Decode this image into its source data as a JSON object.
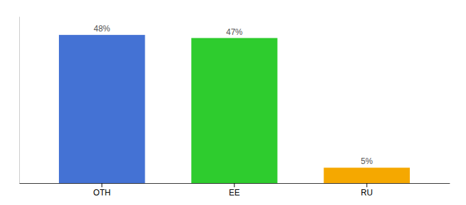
{
  "chart_data": {
    "type": "bar",
    "categories": [
      "OTH",
      "EE",
      "RU"
    ],
    "values": [
      48,
      47,
      5
    ],
    "colors": [
      "#4472d4",
      "#2ecc2e",
      "#f5a800"
    ],
    "value_labels": [
      "48%",
      "47%",
      "5%"
    ],
    "data_labels": true,
    "ylim": [
      0,
      54
    ],
    "grid": false,
    "tick_labels": "x"
  }
}
